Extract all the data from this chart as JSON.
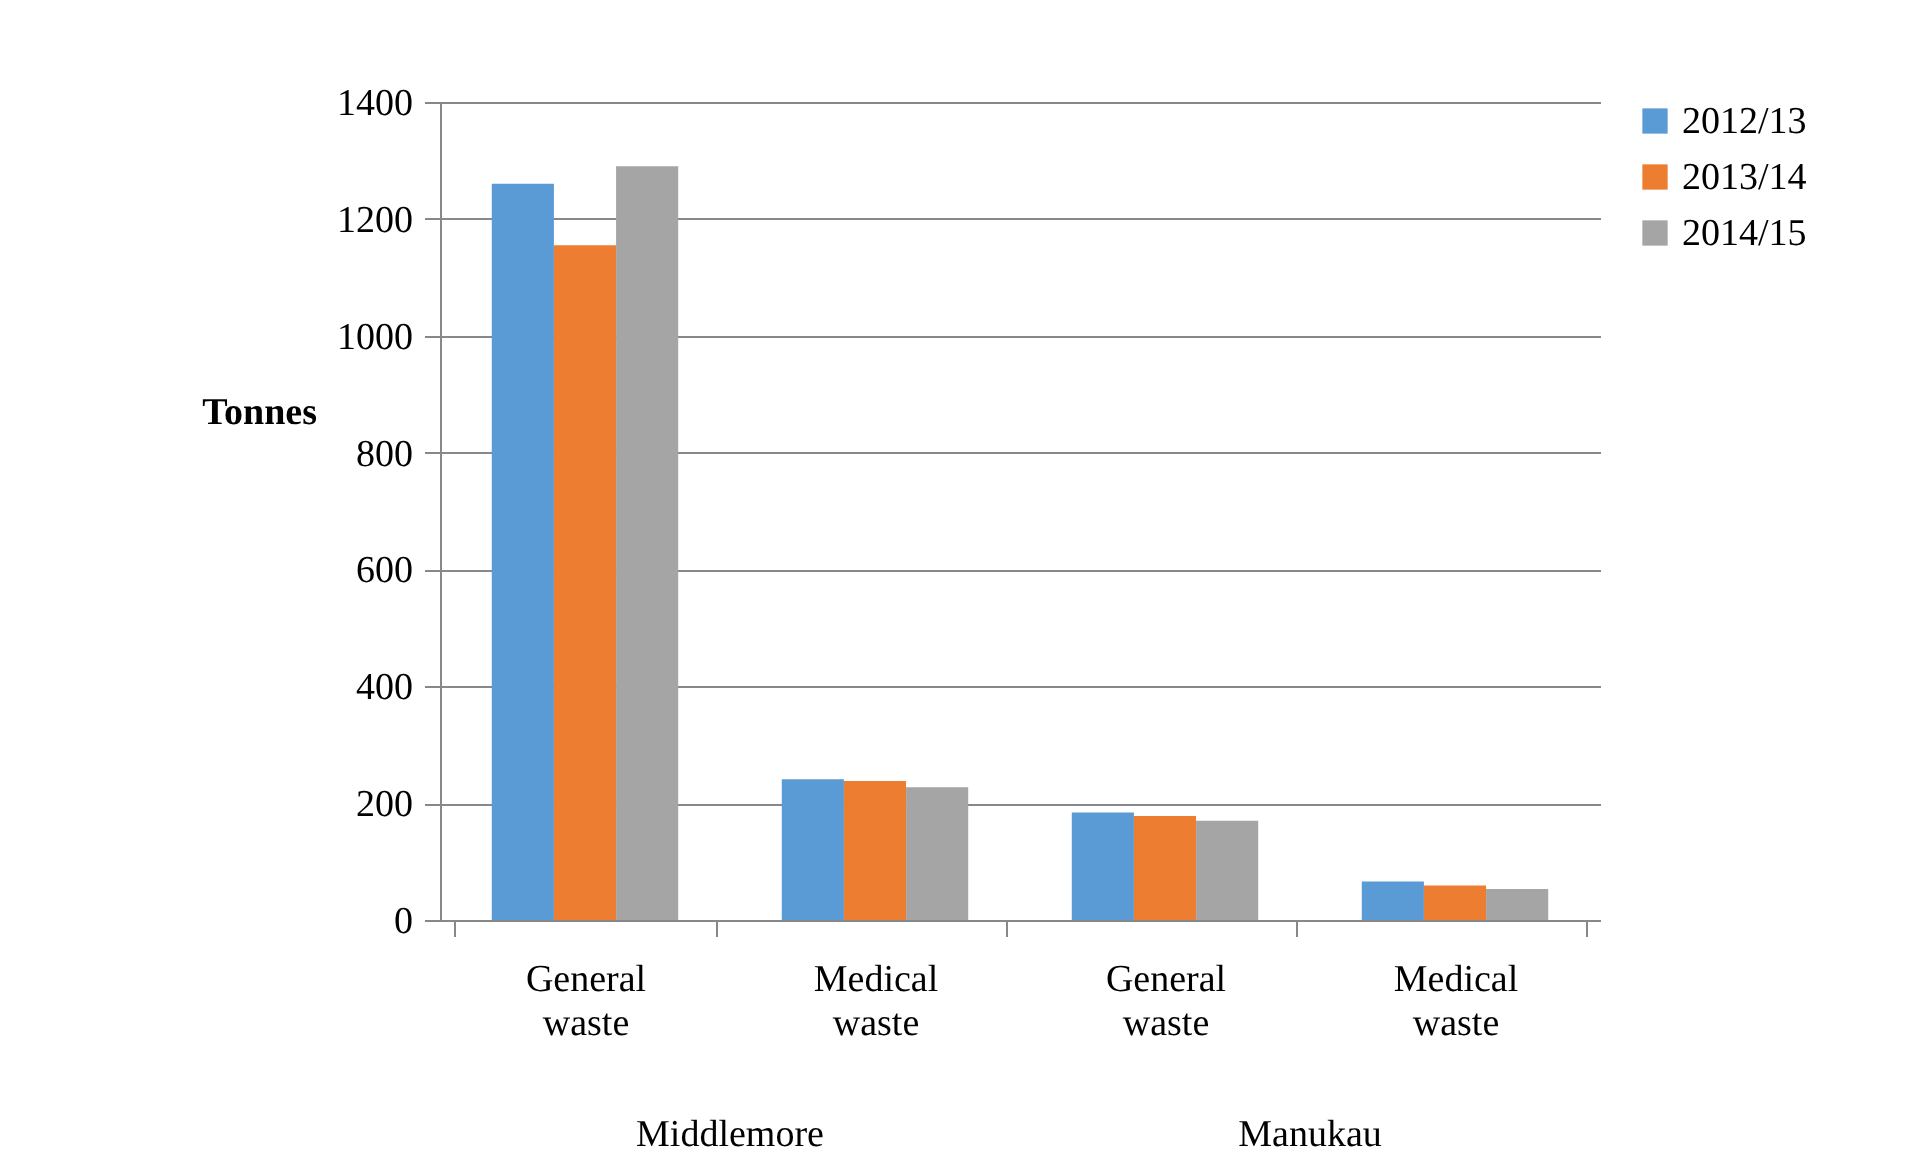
{
  "chart_data": {
    "type": "bar",
    "ylabel": "Tonnes",
    "categories": [
      "General waste",
      "Medical waste",
      "General waste",
      "Medical waste"
    ],
    "series": [
      {
        "name": "2012/13",
        "color": "#5b9bd5",
        "values": [
          1260,
          241,
          184,
          66
        ]
      },
      {
        "name": "2013/14",
        "color": "#ed7d31",
        "values": [
          1155,
          238,
          178,
          59
        ]
      },
      {
        "name": "2014/15",
        "color": "#a5a5a5",
        "values": [
          1290,
          227,
          170,
          53
        ]
      }
    ],
    "annotations": [
      "Middlemore",
      "Manukau"
    ],
    "ylim": [
      0,
      1400
    ],
    "yticks": [
      0,
      200,
      400,
      600,
      800,
      1000,
      1200,
      1400
    ],
    "grid": "y",
    "legend": "right"
  }
}
